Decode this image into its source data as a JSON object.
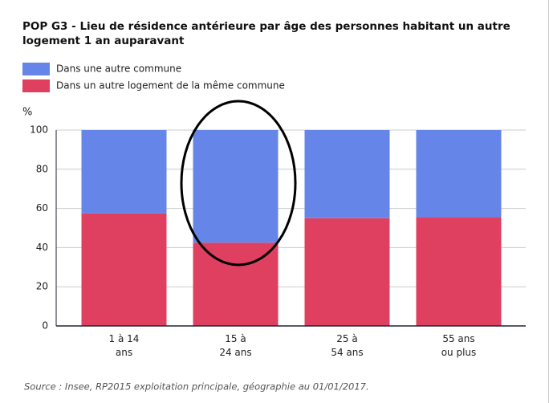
{
  "chart_data": {
    "type": "stacked_bar",
    "title": "POP G3 - Lieu de résidence antérieure par âge des personnes habitant un autre logement 1 an auparavant",
    "y_label": "%",
    "categories": [
      [
        "1 à 14",
        "ans"
      ],
      [
        "15 à",
        "24 ans"
      ],
      [
        "25 à",
        "54 ans"
      ],
      [
        "55 ans",
        "ou plus"
      ]
    ],
    "series": [
      {
        "name": "Dans un autre logement de la même commune",
        "color": "#e0405f",
        "values": [
          57.5,
          42.5,
          55,
          55.5
        ]
      },
      {
        "name": "Dans une autre commune",
        "color": "#6685e8",
        "values": [
          42.5,
          57.5,
          45,
          44.5
        ]
      }
    ],
    "ylim": [
      0,
      100
    ],
    "yticks": [
      0,
      20,
      40,
      60,
      80,
      100
    ],
    "grid": true,
    "source": "Source : Insee, RP2015 exploitation principale, géographie au 01/01/2017."
  }
}
